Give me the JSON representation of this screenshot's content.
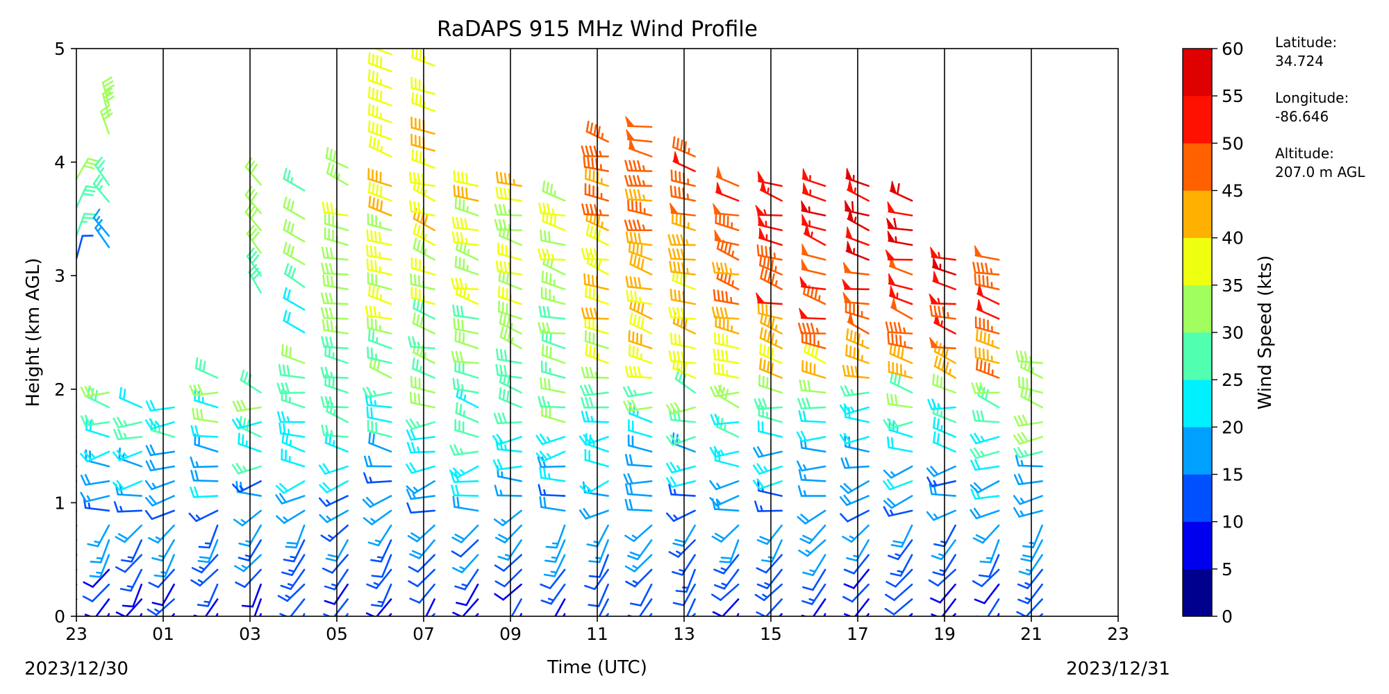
{
  "chart_data": {
    "type": "wind-barb",
    "title": "RaDAPS 915 MHz Wind Profile",
    "xlabel": "Time (UTC)",
    "ylabel": "Height (km AGL)",
    "x_tick_labels": [
      "23",
      "01",
      "03",
      "05",
      "07",
      "09",
      "11",
      "13",
      "15",
      "17",
      "19",
      "21",
      "23"
    ],
    "x_tick_hours": [
      0,
      2,
      4,
      6,
      8,
      10,
      12,
      14,
      16,
      18,
      20,
      22,
      24
    ],
    "xlim_hours": [
      0,
      24
    ],
    "start_date_label": "2023/12/30",
    "end_date_label": "2023/12/31",
    "y_tick_labels": [
      "0",
      "1",
      "2",
      "3",
      "4",
      "5"
    ],
    "ylim": [
      0,
      5
    ],
    "vertical_lines_hours": [
      2,
      4,
      6,
      8,
      10,
      12,
      14,
      16,
      18,
      20,
      22
    ],
    "colorbar": {
      "label": "Wind Speed (kts)",
      "boundaries": [
        0,
        5,
        10,
        15,
        20,
        25,
        30,
        35,
        40,
        45,
        50,
        55,
        60
      ],
      "tick_labels": [
        "0",
        "5",
        "10",
        "15",
        "20",
        "25",
        "30",
        "35",
        "40",
        "45",
        "50",
        "55",
        "60"
      ],
      "colors": [
        "#00008f",
        "#0000ef",
        "#0050ff",
        "#00a0ff",
        "#00f0ff",
        "#50ffaf",
        "#a0ff5f",
        "#efff10",
        "#ffb000",
        "#ff6000",
        "#ff1000",
        "#df0000",
        "#800000"
      ]
    },
    "profiles": [
      {
        "t": 0.0,
        "top_km": 1.9,
        "extra": [
          [
            3.15,
            12,
            15
          ],
          [
            3.35,
            25,
            20
          ],
          [
            3.6,
            28,
            25
          ],
          [
            3.85,
            30,
            30
          ]
        ]
      },
      {
        "t": 0.75,
        "top_km": 2.0,
        "extra": [
          [
            3.25,
            15,
            325
          ],
          [
            3.35,
            15,
            320
          ],
          [
            3.65,
            25,
            320
          ],
          [
            3.8,
            25,
            325
          ],
          [
            4.25,
            32,
            340
          ],
          [
            4.4,
            30,
            345
          ],
          [
            4.5,
            33,
            345
          ]
        ]
      },
      {
        "t": 1.5,
        "top_km": 1.95,
        "extra": []
      },
      {
        "t": 2.25,
        "top_km": 1.95,
        "extra": []
      },
      {
        "t": 3.25,
        "top_km": 2.1,
        "extra": []
      },
      {
        "t": 4.25,
        "top_km": 2.0,
        "extra": [
          [
            2.85,
            28,
            330
          ],
          [
            3.0,
            28,
            325
          ],
          [
            3.2,
            30,
            325
          ],
          [
            3.4,
            30,
            320
          ],
          [
            3.55,
            30,
            320
          ],
          [
            3.8,
            30,
            320
          ]
        ]
      },
      {
        "t": 5.25,
        "top_km": 2.3,
        "extra": [
          [
            2.5,
            20,
            300
          ],
          [
            2.7,
            22,
            300
          ],
          [
            2.9,
            28,
            305
          ],
          [
            3.1,
            30,
            300
          ],
          [
            3.3,
            32,
            300
          ],
          [
            3.5,
            30,
            300
          ],
          [
            3.75,
            26,
            300
          ]
        ]
      },
      {
        "t": 6.25,
        "top_km": 3.6,
        "extra": [
          [
            3.8,
            33,
            300
          ],
          [
            3.95,
            32,
            295
          ]
        ]
      },
      {
        "t": 7.25,
        "top_km": 3.9,
        "extra": [
          [
            4.05,
            36,
            295
          ],
          [
            4.2,
            38,
            290
          ],
          [
            4.35,
            36,
            290
          ],
          [
            4.5,
            38,
            290
          ],
          [
            4.65,
            36,
            290
          ],
          [
            4.8,
            38,
            290
          ],
          [
            4.95,
            38,
            290
          ]
        ]
      },
      {
        "t": 8.25,
        "top_km": 3.8,
        "extra": [
          [
            3.95,
            35,
            290
          ],
          [
            4.1,
            40,
            285
          ],
          [
            4.25,
            42,
            285
          ],
          [
            4.45,
            36,
            290
          ],
          [
            4.6,
            36,
            285
          ],
          [
            4.85,
            36,
            290
          ],
          [
            5.0,
            38,
            285
          ]
        ]
      },
      {
        "t": 9.25,
        "top_km": 3.9,
        "extra": []
      },
      {
        "t": 10.25,
        "top_km": 3.9,
        "extra": []
      },
      {
        "t": 11.25,
        "top_km": 3.75,
        "extra": []
      },
      {
        "t": 12.25,
        "top_km": 4.2,
        "extra": []
      },
      {
        "t": 13.25,
        "top_km": 4.4,
        "extra": []
      },
      {
        "t": 14.25,
        "top_km": 4.1,
        "extra": []
      },
      {
        "t": 15.25,
        "top_km": 3.9,
        "extra": []
      },
      {
        "t": 16.25,
        "top_km": 3.9,
        "extra": []
      },
      {
        "t": 17.25,
        "top_km": 3.85,
        "extra": []
      },
      {
        "t": 18.25,
        "top_km": 3.9,
        "extra": []
      },
      {
        "t": 19.25,
        "top_km": 3.75,
        "extra": []
      },
      {
        "t": 20.25,
        "top_km": 3.2,
        "extra": []
      },
      {
        "t": 21.25,
        "top_km": 3.2,
        "extra": []
      },
      {
        "t": 22.25,
        "top_km": 2.3,
        "extra": []
      }
    ],
    "barb_spacing_km": 0.13
  },
  "site_info": {
    "latitude_label": "Latitude:",
    "latitude_value": "34.724",
    "longitude_label": "Longitude:",
    "longitude_value": "-86.646",
    "altitude_label": "Altitude:",
    "altitude_value": "207.0 m AGL"
  }
}
